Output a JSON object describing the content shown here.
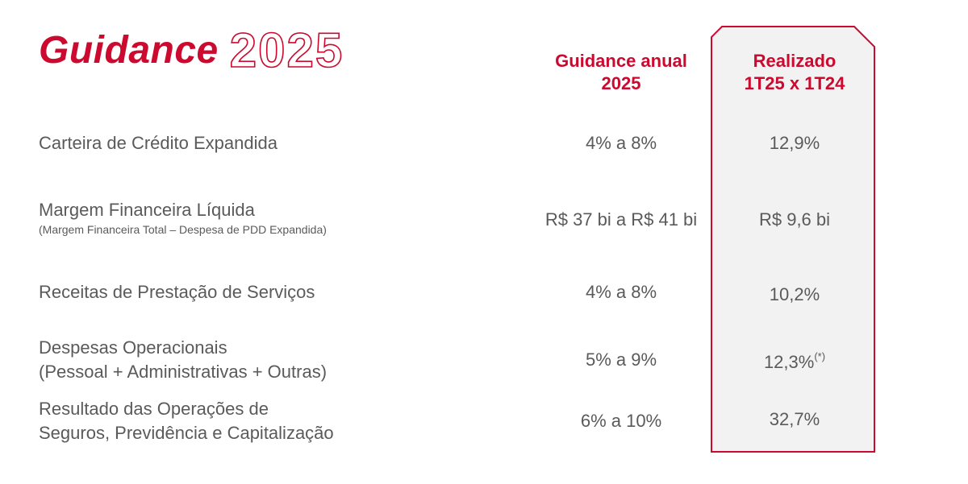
{
  "title": {
    "main": "Guidance",
    "year": "2025"
  },
  "columns": {
    "guidance": {
      "line1": "Guidance anual",
      "line2": "2025"
    },
    "realized": {
      "line1": "Realizado",
      "line2": "1T25 x 1T24"
    }
  },
  "rows": [
    {
      "label": "Carteira de Crédito Expandida",
      "guidance": "4% a 8%",
      "realized": "12,9%"
    },
    {
      "label": "Margem Financeira Líquida",
      "sublabel": "(Margem Financeira Total – Despesa de PDD Expandida)",
      "guidance": "R$ 37 bi a R$ 41 bi",
      "realized": "R$ 9,6 bi"
    },
    {
      "label": "Receitas de Prestação de Serviços",
      "guidance": "4% a 8%",
      "realized": "10,2%"
    },
    {
      "label": "Despesas Operacionais",
      "label2": "(Pessoal + Administrativas + Outras)",
      "guidance": "5% a 9%",
      "realized": "12,3%",
      "realized_note": "(*)"
    },
    {
      "label": "Resultado das Operações de",
      "label2": "Seguros, Previdência e Capitalização",
      "guidance": "6% a 10%",
      "realized": "32,7%"
    }
  ],
  "colors": {
    "accent": "#cc092f",
    "text": "#5a5a5a",
    "box_fill": "#f2f2f2"
  }
}
